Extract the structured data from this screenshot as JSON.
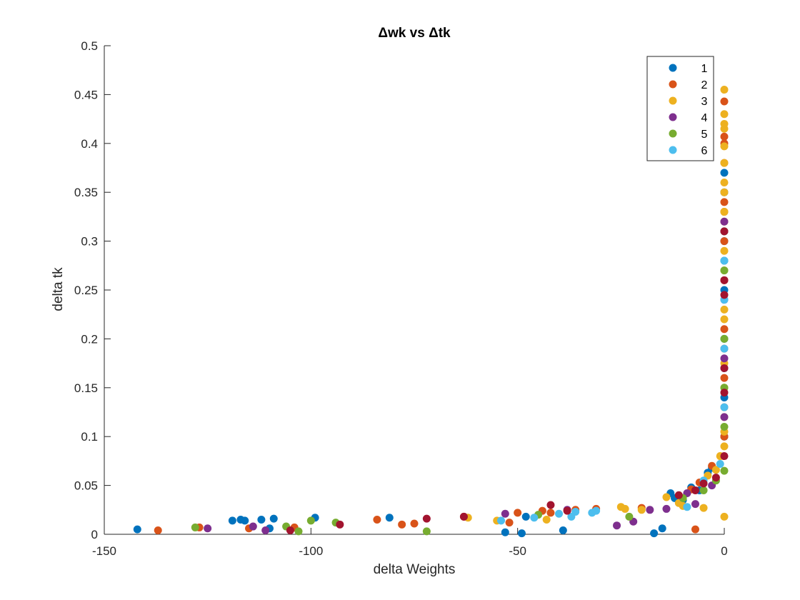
{
  "chart_data": {
    "type": "scatter",
    "title": "Δwk vs Δtk",
    "xlabel": "delta Weights",
    "ylabel": "delta tk",
    "xlim": [
      -150,
      0
    ],
    "ylim": [
      0,
      0.5
    ],
    "xticks": [
      -150,
      -100,
      -50,
      0
    ],
    "yticks": [
      0,
      0.05,
      0.1,
      0.15,
      0.2,
      0.25,
      0.3,
      0.35,
      0.4,
      0.45,
      0.5
    ],
    "legend_position": "top-right",
    "series": [
      {
        "name": "1",
        "color": "#0072BD",
        "points": [
          [
            -142,
            0.005
          ],
          [
            -119,
            0.014
          ],
          [
            -117,
            0.015
          ],
          [
            -116,
            0.014
          ],
          [
            -112,
            0.015
          ],
          [
            -110,
            0.006
          ],
          [
            -109,
            0.016
          ],
          [
            -99,
            0.017
          ],
          [
            -81,
            0.017
          ],
          [
            -53,
            0.002
          ],
          [
            -49,
            0.001
          ],
          [
            -48,
            0.018
          ],
          [
            -39,
            0.004
          ],
          [
            -17,
            0.001
          ],
          [
            -15,
            0.006
          ],
          [
            -13,
            0.042
          ],
          [
            -12,
            0.037
          ],
          [
            -10,
            0.035
          ],
          [
            -8,
            0.048
          ],
          [
            -6,
            0.045
          ],
          [
            -4,
            0.063
          ],
          [
            -3,
            0.068
          ],
          [
            0,
            0.1
          ],
          [
            0,
            0.14
          ],
          [
            0,
            0.17
          ],
          [
            0,
            0.2
          ],
          [
            0,
            0.25
          ],
          [
            0,
            0.28
          ],
          [
            0,
            0.3
          ],
          [
            0,
            0.31
          ],
          [
            0,
            0.35
          ],
          [
            0,
            0.37
          ]
        ]
      },
      {
        "name": "2",
        "color": "#D95319",
        "points": [
          [
            -137,
            0.004
          ],
          [
            -127,
            0.007
          ],
          [
            -115,
            0.006
          ],
          [
            -104,
            0.007
          ],
          [
            -84,
            0.015
          ],
          [
            -78,
            0.01
          ],
          [
            -75,
            0.011
          ],
          [
            -63,
            0.018
          ],
          [
            -52,
            0.012
          ],
          [
            -50,
            0.022
          ],
          [
            -44,
            0.024
          ],
          [
            -42,
            0.022
          ],
          [
            -36,
            0.025
          ],
          [
            -31,
            0.026
          ],
          [
            -20,
            0.027
          ],
          [
            -7,
            0.005
          ],
          [
            -8,
            0.046
          ],
          [
            -6,
            0.053
          ],
          [
            -3,
            0.07
          ],
          [
            0,
            0.1
          ],
          [
            0,
            0.13
          ],
          [
            0,
            0.16
          ],
          [
            0,
            0.19
          ],
          [
            0,
            0.21
          ],
          [
            0,
            0.26
          ],
          [
            0,
            0.3
          ],
          [
            0,
            0.33
          ],
          [
            0,
            0.34
          ],
          [
            0,
            0.38
          ],
          [
            0,
            0.4
          ],
          [
            0,
            0.407
          ],
          [
            0,
            0.443
          ]
        ]
      },
      {
        "name": "3",
        "color": "#EDB120",
        "points": [
          [
            -62,
            0.017
          ],
          [
            -55,
            0.014
          ],
          [
            -43,
            0.015
          ],
          [
            -25,
            0.028
          ],
          [
            -24,
            0.026
          ],
          [
            -20,
            0.025
          ],
          [
            -14,
            0.038
          ],
          [
            -11,
            0.032
          ],
          [
            -10,
            0.029
          ],
          [
            -5,
            0.027
          ],
          [
            -4,
            0.06
          ],
          [
            -2,
            0.066
          ],
          [
            -1,
            0.08
          ],
          [
            0,
            0.018
          ],
          [
            0,
            0.09
          ],
          [
            0,
            0.105
          ],
          [
            0,
            0.12
          ],
          [
            0,
            0.15
          ],
          [
            0,
            0.175
          ],
          [
            0,
            0.22
          ],
          [
            0,
            0.23
          ],
          [
            0,
            0.27
          ],
          [
            0,
            0.29
          ],
          [
            0,
            0.32
          ],
          [
            0,
            0.33
          ],
          [
            0,
            0.35
          ],
          [
            0,
            0.36
          ],
          [
            0,
            0.38
          ],
          [
            0,
            0.397
          ],
          [
            0,
            0.415
          ],
          [
            0,
            0.42
          ],
          [
            0,
            0.43
          ],
          [
            0,
            0.455
          ]
        ]
      },
      {
        "name": "4",
        "color": "#7E2F8E",
        "points": [
          [
            -125,
            0.006
          ],
          [
            -114,
            0.008
          ],
          [
            -111,
            0.004
          ],
          [
            -53,
            0.021
          ],
          [
            -38,
            0.025
          ],
          [
            -26,
            0.009
          ],
          [
            -22,
            0.013
          ],
          [
            -18,
            0.025
          ],
          [
            -14,
            0.026
          ],
          [
            -9,
            0.042
          ],
          [
            -7,
            0.031
          ],
          [
            -3,
            0.05
          ],
          [
            0,
            0.12
          ],
          [
            0,
            0.18
          ],
          [
            0,
            0.24
          ],
          [
            0,
            0.32
          ]
        ]
      },
      {
        "name": "5",
        "color": "#77AC30",
        "points": [
          [
            -128,
            0.007
          ],
          [
            -106,
            0.008
          ],
          [
            -103,
            0.003
          ],
          [
            -100,
            0.014
          ],
          [
            -94,
            0.012
          ],
          [
            -72,
            0.003
          ],
          [
            -45,
            0.02
          ],
          [
            -23,
            0.018
          ],
          [
            -10,
            0.037
          ],
          [
            -5,
            0.045
          ],
          [
            -2,
            0.055
          ],
          [
            0,
            0.065
          ],
          [
            0,
            0.11
          ],
          [
            0,
            0.15
          ],
          [
            0,
            0.2
          ],
          [
            0,
            0.27
          ],
          [
            0,
            0.31
          ]
        ]
      },
      {
        "name": "6",
        "color": "#4DBEEE",
        "points": [
          [
            -54,
            0.014
          ],
          [
            -46,
            0.017
          ],
          [
            -40,
            0.021
          ],
          [
            -37,
            0.018
          ],
          [
            -36,
            0.023
          ],
          [
            -32,
            0.022
          ],
          [
            -31,
            0.024
          ],
          [
            -9,
            0.028
          ],
          [
            -5,
            0.055
          ],
          [
            -1,
            0.072
          ],
          [
            0,
            0.13
          ],
          [
            0,
            0.19
          ],
          [
            0,
            0.24
          ],
          [
            0,
            0.28
          ]
        ]
      },
      {
        "color": "#A2142F",
        "points": [
          [
            -105,
            0.004
          ],
          [
            -93,
            0.01
          ],
          [
            -72,
            0.016
          ],
          [
            -63,
            0.018
          ],
          [
            -38,
            0.024
          ],
          [
            -42,
            0.03
          ],
          [
            -11,
            0.04
          ],
          [
            -7,
            0.045
          ],
          [
            -5,
            0.052
          ],
          [
            -2,
            0.058
          ],
          [
            0,
            0.08
          ],
          [
            0,
            0.145
          ],
          [
            0,
            0.17
          ],
          [
            0,
            0.245
          ],
          [
            0,
            0.26
          ],
          [
            0,
            0.31
          ]
        ]
      }
    ]
  }
}
